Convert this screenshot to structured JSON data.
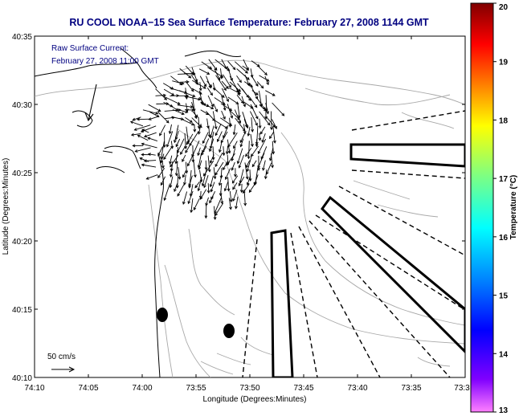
{
  "header": {
    "title": "RU COOL  NOAA−15  Sea Surface Temperature:  February 27, 2008 1144 GMT"
  },
  "map": {
    "overlay_line1": "Raw Surface Current:",
    "overlay_line2": "February 27, 2008 11:00 GMT",
    "scale_label": "50 cm/s",
    "x_axis_label": "Longitude (Degrees:Minutes)",
    "y_axis_label": "Latitude (Degrees:Minutes)",
    "x_ticks": [
      "74:10",
      "74:05",
      "74:00",
      "73:55",
      "73:50",
      "73:45",
      "73:40",
      "73:35",
      "73:3"
    ],
    "y_ticks": [
      "40:35",
      "40:30",
      "40:25",
      "40:20",
      "40:15",
      "40:10"
    ]
  },
  "colorbar": {
    "label": "Temperature (°C)",
    "ticks": [
      "20",
      "19",
      "18",
      "17",
      "16",
      "15",
      "14",
      "13"
    ],
    "colors": [
      "#800000",
      "#ff0000",
      "#ff8000",
      "#ffff00",
      "#80ff80",
      "#00ffff",
      "#0080ff",
      "#0000ff",
      "#8000ff",
      "#ff80ff"
    ]
  }
}
